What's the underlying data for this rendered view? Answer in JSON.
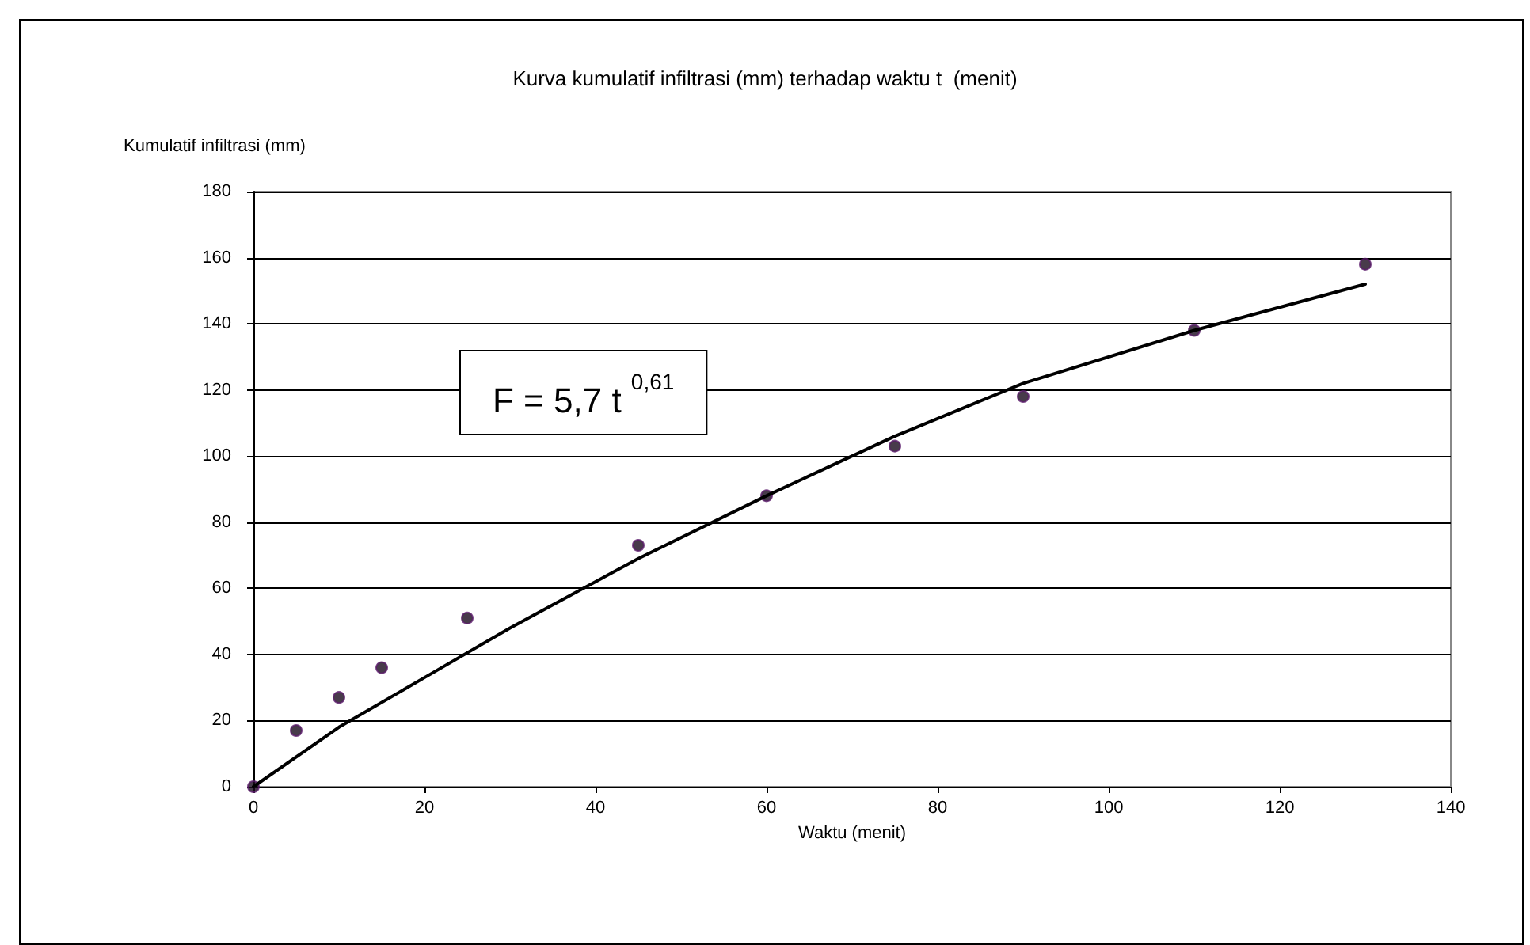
{
  "chart_data": {
    "type": "scatter",
    "title": "Kurva kumulatif infiltrasi (mm) terhadap waktu t  (menit)",
    "xlabel": "Waktu (menit)",
    "ylabel": "Kumulatif infiltrasi (mm)",
    "annotations": [
      "F = 5,7 t $^{0,61}$"
    ],
    "xlim": [
      0,
      140
    ],
    "xticks": [
      0,
      20,
      40,
      60,
      80,
      100,
      120,
      140
    ],
    "ylim": [
      0,
      180
    ],
    "yticks": [
      0,
      20,
      40,
      60,
      80,
      100,
      120,
      140,
      160,
      180
    ],
    "grid": "y",
    "marker": "circle",
    "series": [
      {
        "color": "#1a0a1e",
        "x": [
          0,
          5,
          10,
          15,
          25,
          45,
          60,
          75,
          90,
          110,
          130
        ],
        "values": [
          0,
          17,
          27,
          36,
          51,
          73,
          88,
          103,
          118,
          138,
          158
        ]
      },
      {
        "type": "line",
        "color": "#000000",
        "marker": "none",
        "line_style": "solid",
        "x": [
          0,
          10,
          20,
          30,
          45,
          60,
          75,
          90,
          110,
          130
        ],
        "values": [
          0,
          18,
          33,
          48,
          69,
          88,
          106,
          122,
          138,
          152
        ]
      }
    ]
  }
}
